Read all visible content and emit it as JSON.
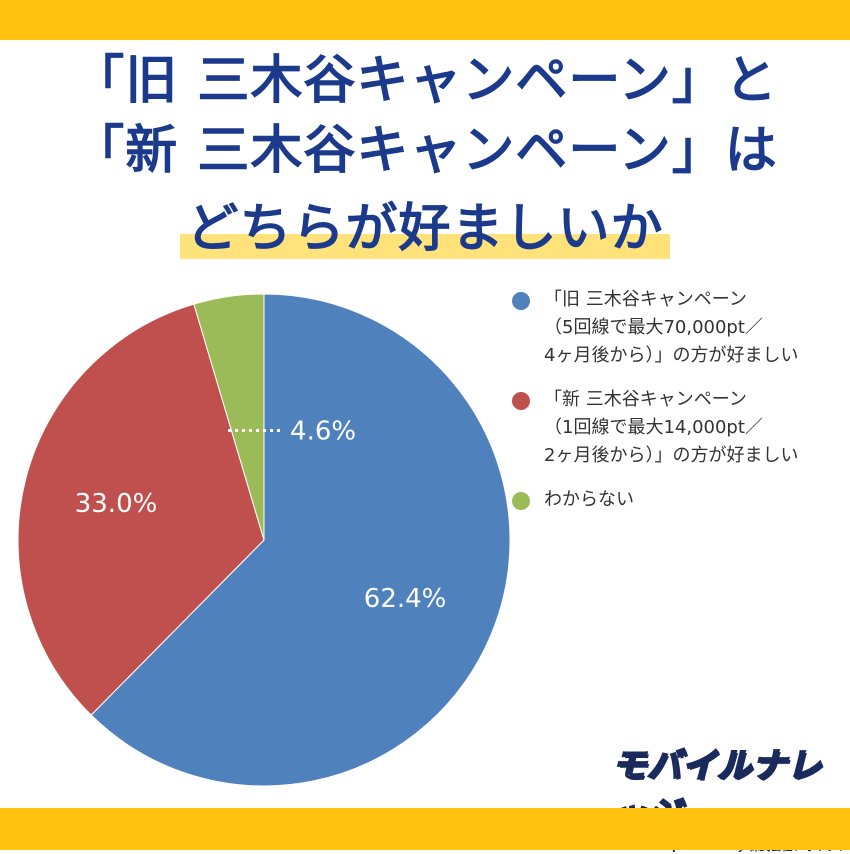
{
  "title": {
    "line1": "「旧 三木谷キャンペーン」と",
    "line2": "「新 三木谷キャンペーン」は",
    "line3": "どちらが好ましいか"
  },
  "chart_data": {
    "type": "pie",
    "slices": [
      {
        "label": "「旧 三木谷キャンペーン\n（5回線で最大70,000pt／\n4ヶ月後から）」の方が好ましい",
        "value": 62.4,
        "display": "62.4%",
        "color": "#4F81BD"
      },
      {
        "label": "「新 三木谷キャンペーン\n（1回線で最大14,000pt／\n2ヶ月後から）」の方が好ましい",
        "value": 33.0,
        "display": "33.0%",
        "color": "#C0504D"
      },
      {
        "label": "わからない",
        "value": 4.6,
        "display": "4.6%",
        "color": "#9BBB59"
      }
    ],
    "start_angle": "12 o'clock",
    "direction": "clockwise",
    "legend_position": "right"
  },
  "logo": {
    "name": "モバイルナレッジ",
    "powered_by": "powered by 株式会社フォネット"
  }
}
